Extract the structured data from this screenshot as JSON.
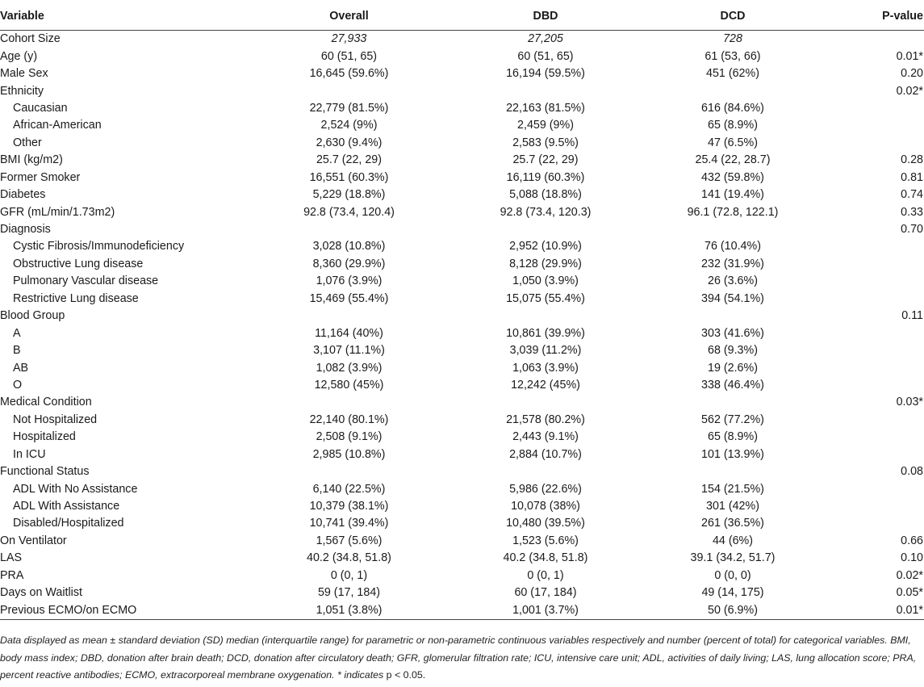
{
  "header": {
    "variable": "Variable",
    "overall": "Overall",
    "dbd": "DBD",
    "dcd": "DCD",
    "pvalue": "P-value"
  },
  "rows": [
    {
      "label": "Cohort Size",
      "indent": false,
      "italic": true,
      "overall": "27,933",
      "dbd": "27,205",
      "dcd": "728",
      "p": ""
    },
    {
      "label": "Age (y)",
      "indent": false,
      "overall": "60 (51, 65)",
      "dbd": "60 (51, 65)",
      "dcd": "61 (53, 66)",
      "p": "0.01*"
    },
    {
      "label": "Male Sex",
      "indent": false,
      "overall": "16,645 (59.6%)",
      "dbd": "16,194 (59.5%)",
      "dcd": "451 (62%)",
      "p": "0.20"
    },
    {
      "label": "Ethnicity",
      "indent": false,
      "overall": "",
      "dbd": "",
      "dcd": "",
      "p": "0.02*"
    },
    {
      "label": "Caucasian",
      "indent": true,
      "overall": "22,779 (81.5%)",
      "dbd": "22,163 (81.5%)",
      "dcd": "616 (84.6%)",
      "p": ""
    },
    {
      "label": "African-American",
      "indent": true,
      "overall": "2,524 (9%)",
      "dbd": "2,459 (9%)",
      "dcd": "65 (8.9%)",
      "p": ""
    },
    {
      "label": "Other",
      "indent": true,
      "overall": "2,630 (9.4%)",
      "dbd": "2,583 (9.5%)",
      "dcd": "47 (6.5%)",
      "p": ""
    },
    {
      "label": "BMI (kg/m2)",
      "indent": false,
      "overall": "25.7 (22, 29)",
      "dbd": "25.7 (22, 29)",
      "dcd": "25.4 (22, 28.7)",
      "p": "0.28"
    },
    {
      "label": "Former Smoker",
      "indent": false,
      "overall": "16,551 (60.3%)",
      "dbd": "16,119 (60.3%)",
      "dcd": "432 (59.8%)",
      "p": "0.81"
    },
    {
      "label": "Diabetes",
      "indent": false,
      "overall": "5,229 (18.8%)",
      "dbd": "5,088 (18.8%)",
      "dcd": "141 (19.4%)",
      "p": "0.74"
    },
    {
      "label": "GFR (mL/min/1.73m2)",
      "indent": false,
      "overall": "92.8 (73.4, 120.4)",
      "dbd": "92.8 (73.4, 120.3)",
      "dcd": "96.1 (72.8, 122.1)",
      "p": "0.33"
    },
    {
      "label": "Diagnosis",
      "indent": false,
      "overall": "",
      "dbd": "",
      "dcd": "",
      "p": "0.70"
    },
    {
      "label": "Cystic Fibrosis/Immunodeficiency",
      "indent": true,
      "overall": "3,028 (10.8%)",
      "dbd": "2,952 (10.9%)",
      "dcd": "76 (10.4%)",
      "p": ""
    },
    {
      "label": "Obstructive Lung disease",
      "indent": true,
      "overall": "8,360 (29.9%)",
      "dbd": "8,128 (29.9%)",
      "dcd": "232 (31.9%)",
      "p": ""
    },
    {
      "label": "Pulmonary Vascular disease",
      "indent": true,
      "overall": "1,076 (3.9%)",
      "dbd": "1,050 (3.9%)",
      "dcd": "26 (3.6%)",
      "p": ""
    },
    {
      "label": "Restrictive Lung disease",
      "indent": true,
      "overall": "15,469 (55.4%)",
      "dbd": "15,075 (55.4%)",
      "dcd": "394 (54.1%)",
      "p": ""
    },
    {
      "label": "Blood Group",
      "indent": false,
      "overall": "",
      "dbd": "",
      "dcd": "",
      "p": "0.11"
    },
    {
      "label": "A",
      "indent": true,
      "overall": "11,164 (40%)",
      "dbd": "10,861 (39.9%)",
      "dcd": "303 (41.6%)",
      "p": ""
    },
    {
      "label": "B",
      "indent": true,
      "overall": "3,107 (11.1%)",
      "dbd": "3,039 (11.2%)",
      "dcd": "68 (9.3%)",
      "p": ""
    },
    {
      "label": "AB",
      "indent": true,
      "overall": "1,082 (3.9%)",
      "dbd": "1,063 (3.9%)",
      "dcd": "19 (2.6%)",
      "p": ""
    },
    {
      "label": "O",
      "indent": true,
      "overall": "12,580 (45%)",
      "dbd": "12,242 (45%)",
      "dcd": "338 (46.4%)",
      "p": ""
    },
    {
      "label": "Medical Condition",
      "indent": false,
      "overall": "",
      "dbd": "",
      "dcd": "",
      "p": "0.03*"
    },
    {
      "label": "Not Hospitalized",
      "indent": true,
      "overall": "22,140 (80.1%)",
      "dbd": "21,578 (80.2%)",
      "dcd": "562 (77.2%)",
      "p": ""
    },
    {
      "label": "Hospitalized",
      "indent": true,
      "overall": "2,508 (9.1%)",
      "dbd": "2,443 (9.1%)",
      "dcd": "65 (8.9%)",
      "p": ""
    },
    {
      "label": "In ICU",
      "indent": true,
      "overall": "2,985 (10.8%)",
      "dbd": "2,884 (10.7%)",
      "dcd": "101 (13.9%)",
      "p": ""
    },
    {
      "label": "Functional Status",
      "indent": false,
      "overall": "",
      "dbd": "",
      "dcd": "",
      "p": "0.08"
    },
    {
      "label": "ADL With No Assistance",
      "indent": true,
      "overall": "6,140 (22.5%)",
      "dbd": "5,986 (22.6%)",
      "dcd": "154 (21.5%)",
      "p": ""
    },
    {
      "label": "ADL With Assistance",
      "indent": true,
      "overall": "10,379 (38.1%)",
      "dbd": "10,078 (38%)",
      "dcd": "301 (42%)",
      "p": ""
    },
    {
      "label": "Disabled/Hospitalized",
      "indent": true,
      "overall": "10,741 (39.4%)",
      "dbd": "10,480 (39.5%)",
      "dcd": "261 (36.5%)",
      "p": ""
    },
    {
      "label": "On Ventilator",
      "indent": false,
      "overall": "1,567 (5.6%)",
      "dbd": "1,523 (5.6%)",
      "dcd": "44 (6%)",
      "p": "0.66"
    },
    {
      "label": "LAS",
      "indent": false,
      "overall": "40.2 (34.8, 51.8)",
      "dbd": "40.2 (34.8, 51.8)",
      "dcd": "39.1 (34.2, 51.7)",
      "p": "0.10"
    },
    {
      "label": "PRA",
      "indent": false,
      "overall": "0 (0, 1)",
      "dbd": "0 (0, 1)",
      "dcd": "0 (0, 0)",
      "p": "0.02*"
    },
    {
      "label": "Days on Waitlist",
      "indent": false,
      "overall": "59 (17, 184)",
      "dbd": "60 (17, 184)",
      "dcd": "49 (14, 175)",
      "p": "0.05*"
    },
    {
      "label": "Previous ECMO/on ECMO",
      "indent": false,
      "overall": "1,051 (3.8%)",
      "dbd": "1,001 (3.7%)",
      "dcd": "50 (6.9%)",
      "p": "0.01*"
    }
  ],
  "footnote": {
    "main": "Data displayed as mean ± standard deviation (SD) median (interquartile range) for parametric or non-parametric continuous variables respectively and number (percent of total) for categorical variables. BMI, body mass index; DBD, donation after brain death; DCD, donation after circulatory death; GFR, glomerular filtration rate; ICU, intensive care unit; ADL, activities of daily living; LAS, lung allocation score; PRA, percent reactive antibodies; ECMO, extracorporeal membrane oxygenation. * indicates ",
    "tail": "p < 0.05."
  }
}
